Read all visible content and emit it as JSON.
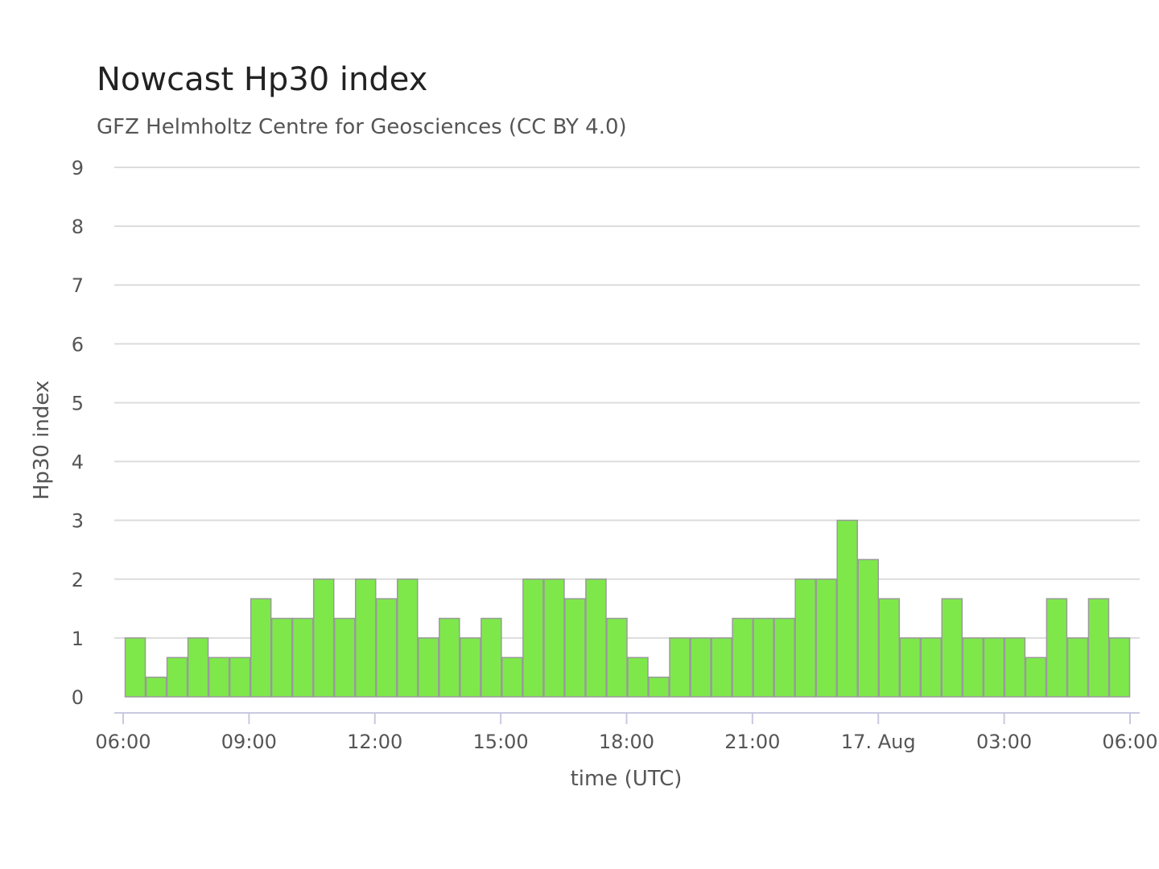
{
  "chart_data": {
    "type": "bar",
    "title": "Nowcast Hp30 index",
    "subtitle": "GFZ Helmholtz Centre for Geosciences (CC BY 4.0)",
    "xlabel": "time (UTC)",
    "ylabel": "Hp30 index",
    "ylim": [
      0,
      9
    ],
    "yticks": [
      "0",
      "1",
      "2",
      "3",
      "4",
      "5",
      "6",
      "7",
      "8",
      "9"
    ],
    "xticks": [
      "06:00",
      "09:00",
      "12:00",
      "15:00",
      "18:00",
      "21:00",
      "17. Aug",
      "03:00",
      "06:00"
    ],
    "grid": true,
    "bar_color": "#7ee84b",
    "series": [
      {
        "values": [
          1,
          0.333,
          0.667,
          1,
          0.667,
          0.667,
          1.667,
          1.333,
          1.333,
          2,
          1.333,
          2,
          1.667,
          2,
          1,
          1.333,
          1,
          1.333,
          0.667,
          2,
          2,
          1.667,
          2,
          1.333,
          0.667,
          0.333,
          1,
          1,
          1,
          1.333,
          1.333,
          1.333,
          2,
          2,
          3,
          2.333,
          1.667,
          1,
          1,
          1.667,
          1,
          1,
          1,
          0.667,
          1.667,
          1,
          1.667,
          1
        ]
      }
    ]
  }
}
